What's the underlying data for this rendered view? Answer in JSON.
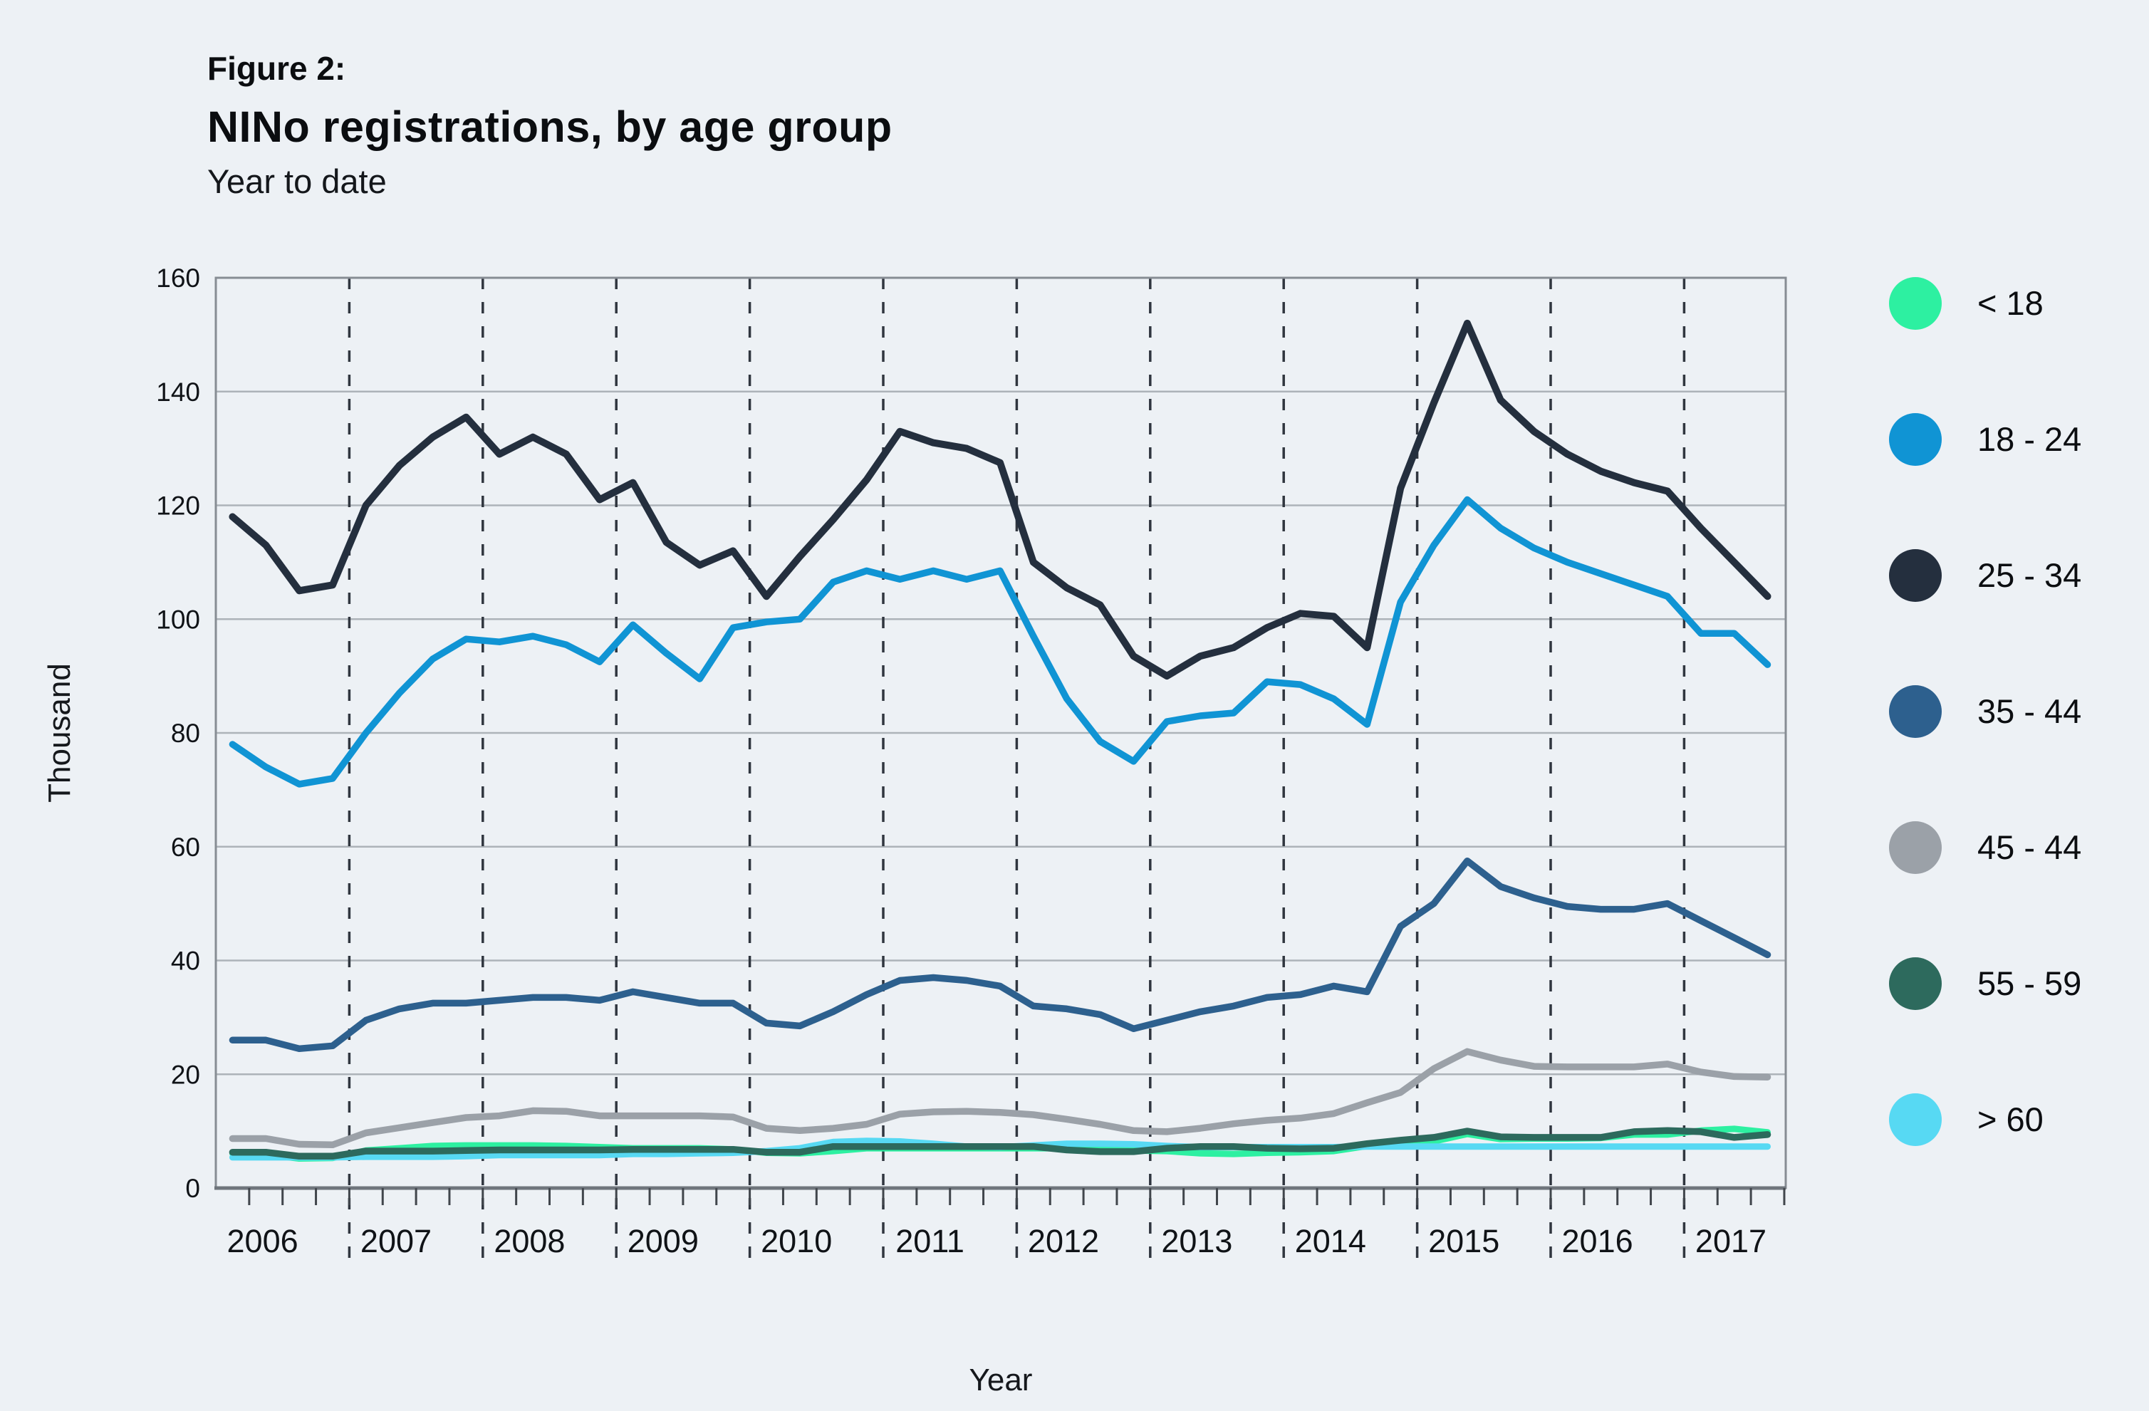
{
  "title": {
    "figure_label": "Figure 2:",
    "main": "NINo registrations, by age group",
    "subtitle": "Year to date"
  },
  "legend": {
    "position": "right",
    "items": [
      {
        "label": "< 18",
        "color": "#2df0a1"
      },
      {
        "label": "18 - 24",
        "color": "#1094d4"
      },
      {
        "label": "25 - 34",
        "color": "#242f3e"
      },
      {
        "label": "35 - 44",
        "color": "#2d608e"
      },
      {
        "label": "45 - 44",
        "color": "#9ba1a8"
      },
      {
        "label": "55 - 59",
        "color": "#2d6a5d"
      },
      {
        "label": "> 60",
        "color": "#57d9f3"
      }
    ]
  },
  "chart_data": {
    "type": "line",
    "title": "NINo registrations, by age group",
    "subtitle": "Year to date",
    "xlabel": "Year",
    "ylabel": "Thousand",
    "ylim": [
      0,
      160
    ],
    "ytick_step": 20,
    "yticks": [
      0,
      20,
      40,
      60,
      80,
      100,
      120,
      140,
      160
    ],
    "x_year_labels": [
      "2006",
      "2007",
      "2008",
      "2009",
      "2010",
      "2011",
      "2012",
      "2013",
      "2014",
      "2015",
      "2016",
      "2017"
    ],
    "x_start": 2006.125,
    "x_step_years": 0.25,
    "grid": {
      "horizontal": "solid",
      "vertical": "dashed-year-separators"
    },
    "legend_position": "right",
    "note": "values in thousands, quarterly year-to-date points 2006 Q1 to 2017 Q3",
    "series": [
      {
        "name": "< 18",
        "color": "#2df0a1",
        "width": 9,
        "values": [
          6.1,
          5.9,
          5.2,
          5.3,
          6.6,
          7.0,
          7.4,
          7.5,
          7.5,
          7.5,
          7.4,
          7.2,
          7.0,
          7.0,
          7.0,
          6.8,
          6.2,
          6.1,
          6.5,
          7.0,
          7.0,
          7.0,
          7.0,
          7.0,
          7.0,
          7.0,
          6.8,
          6.6,
          6.5,
          6.1,
          6.0,
          6.2,
          6.3,
          6.5,
          7.4,
          7.8,
          8.2,
          9.5,
          8.6,
          8.7,
          8.7,
          8.8,
          9.4,
          9.4,
          10.1,
          10.4,
          9.8
        ]
      },
      {
        "name": "> 60",
        "color": "#57d9f3",
        "width": 9,
        "values": [
          5.4,
          5.4,
          5.4,
          5.4,
          5.5,
          5.5,
          5.5,
          5.6,
          5.8,
          5.8,
          5.8,
          5.8,
          6.0,
          6.0,
          6.1,
          6.2,
          6.5,
          7.0,
          8.1,
          8.3,
          8.2,
          7.8,
          7.3,
          7.2,
          7.5,
          7.8,
          7.8,
          7.7,
          7.4,
          7.2,
          7.2,
          7.2,
          7.2,
          7.2,
          7.3,
          7.3,
          7.3,
          7.3,
          7.3,
          7.3,
          7.3,
          7.3,
          7.3,
          7.3,
          7.3,
          7.3,
          7.3
        ]
      },
      {
        "name": "55 - 59",
        "color": "#2d6a5d",
        "width": 9.5,
        "values": [
          6.3,
          6.3,
          5.6,
          5.6,
          6.5,
          6.5,
          6.5,
          6.6,
          6.7,
          6.7,
          6.7,
          6.7,
          6.8,
          6.8,
          6.8,
          6.8,
          6.3,
          6.3,
          7.3,
          7.3,
          7.3,
          7.3,
          7.3,
          7.3,
          7.3,
          6.7,
          6.4,
          6.4,
          7.0,
          7.3,
          7.3,
          7.0,
          6.9,
          7.0,
          7.8,
          8.4,
          8.9,
          10.0,
          9.0,
          8.9,
          8.9,
          8.9,
          9.9,
          10.1,
          9.9,
          8.9,
          9.4
        ]
      },
      {
        "name": "45 - 44",
        "color": "#9ba1a8",
        "width": 9.5,
        "values": [
          8.7,
          8.7,
          7.7,
          7.6,
          9.7,
          10.6,
          11.5,
          12.4,
          12.7,
          13.6,
          13.5,
          12.7,
          12.7,
          12.7,
          12.7,
          12.5,
          10.5,
          10.1,
          10.5,
          11.2,
          13.0,
          13.4,
          13.5,
          13.3,
          12.9,
          12.1,
          11.2,
          10.1,
          9.9,
          10.5,
          11.3,
          11.9,
          12.3,
          13.1,
          15.0,
          16.8,
          21.0,
          24.0,
          22.5,
          21.4,
          21.3,
          21.3,
          21.3,
          21.8,
          20.4,
          19.6,
          19.5
        ]
      },
      {
        "name": "35 - 44",
        "color": "#2d608e",
        "width": 9.5,
        "values": [
          26,
          26,
          24.5,
          25,
          29.5,
          31.5,
          32.5,
          32.5,
          33,
          33.5,
          33.5,
          33,
          34.5,
          33.5,
          32.5,
          32.5,
          29,
          28.5,
          31,
          34,
          36.5,
          37,
          36.5,
          35.5,
          32,
          31.5,
          30.5,
          28,
          29.5,
          31,
          32,
          33.5,
          34,
          35.5,
          34.5,
          46,
          50,
          57.5,
          53,
          51,
          49.5,
          49,
          49,
          50,
          47,
          44,
          41
        ]
      },
      {
        "name": "18 - 24",
        "color": "#1094d4",
        "width": 9.5,
        "values": [
          78,
          74,
          71,
          72,
          80,
          87,
          93,
          96.5,
          96,
          97,
          95.5,
          92.5,
          99,
          94,
          89.5,
          98.5,
          99.5,
          100,
          106.5,
          108.5,
          107,
          108.5,
          107,
          108.5,
          97,
          86,
          78.5,
          75,
          82,
          83,
          83.5,
          89,
          88.5,
          86,
          81.5,
          103,
          113,
          121,
          116,
          112.5,
          110,
          108,
          106,
          104,
          97.5,
          97.5,
          92
        ]
      },
      {
        "name": "25 - 34",
        "color": "#242f3e",
        "width": 10,
        "values": [
          118,
          113,
          105,
          106,
          120,
          127,
          132,
          135.5,
          129,
          132,
          129,
          121,
          124,
          113.5,
          109.5,
          112,
          104,
          111,
          117.5,
          124.5,
          133,
          131,
          130,
          127.5,
          110,
          105.5,
          102.5,
          93.5,
          90,
          93.5,
          95,
          98.5,
          101,
          100.5,
          95,
          123,
          138,
          152,
          138.5,
          133,
          129,
          126,
          124,
          122.5,
          116,
          110,
          104
        ]
      }
    ]
  },
  "style_colors": {
    "background": "#edf1f5",
    "gridline": "#adb3b9",
    "plot_border": "#878d94",
    "axis_line": "#6f757c",
    "dashed_separator": "#30363f",
    "tick": "#41464c",
    "tick_label": "#101317",
    "axis_title": "#15181c"
  }
}
